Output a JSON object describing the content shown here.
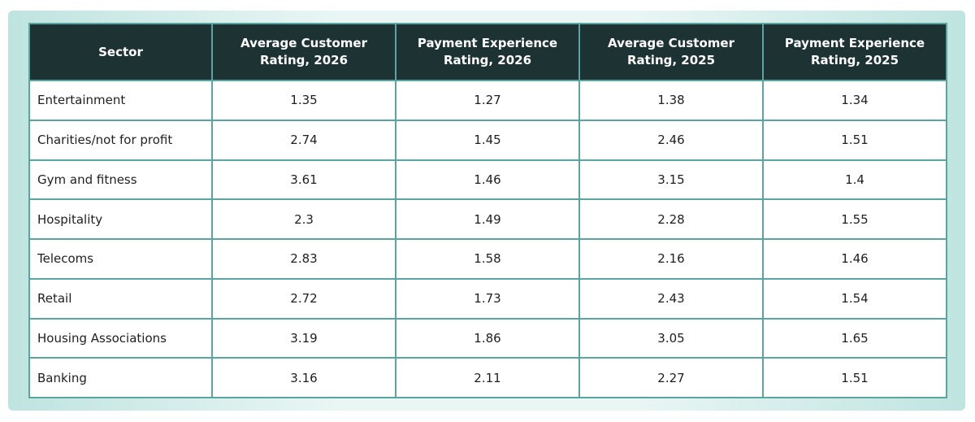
{
  "table": {
    "headers": [
      "Sector",
      "Average Customer Rating, 2026",
      "Payment Experience Rating, 2026",
      "Average Customer Rating, 2025",
      "Payment Experience Rating, 2025"
    ],
    "rows": [
      [
        "Entertainment",
        "1.35",
        "1.27",
        "1.38",
        "1.34"
      ],
      [
        "Charities/not for profit",
        "2.74",
        "1.45",
        "2.46",
        "1.51"
      ],
      [
        "Gym and fitness",
        "3.61",
        "1.46",
        "3.15",
        "1.4"
      ],
      [
        "Hospitality",
        "2.3",
        "1.49",
        "2.28",
        "1.55"
      ],
      [
        "Telecoms",
        "2.83",
        "1.58",
        "2.16",
        "1.46"
      ],
      [
        "Retail",
        "2.72",
        "1.73",
        "2.43",
        "1.54"
      ],
      [
        "Housing Associations",
        "3.19",
        "1.86",
        "3.05",
        "1.65"
      ],
      [
        "Banking",
        "3.16",
        "2.11",
        "2.27",
        "1.51"
      ]
    ]
  },
  "colors": {
    "header_bg": "#1c3233",
    "grid": "#5aa5a0",
    "frame": "#bfe4e0"
  }
}
